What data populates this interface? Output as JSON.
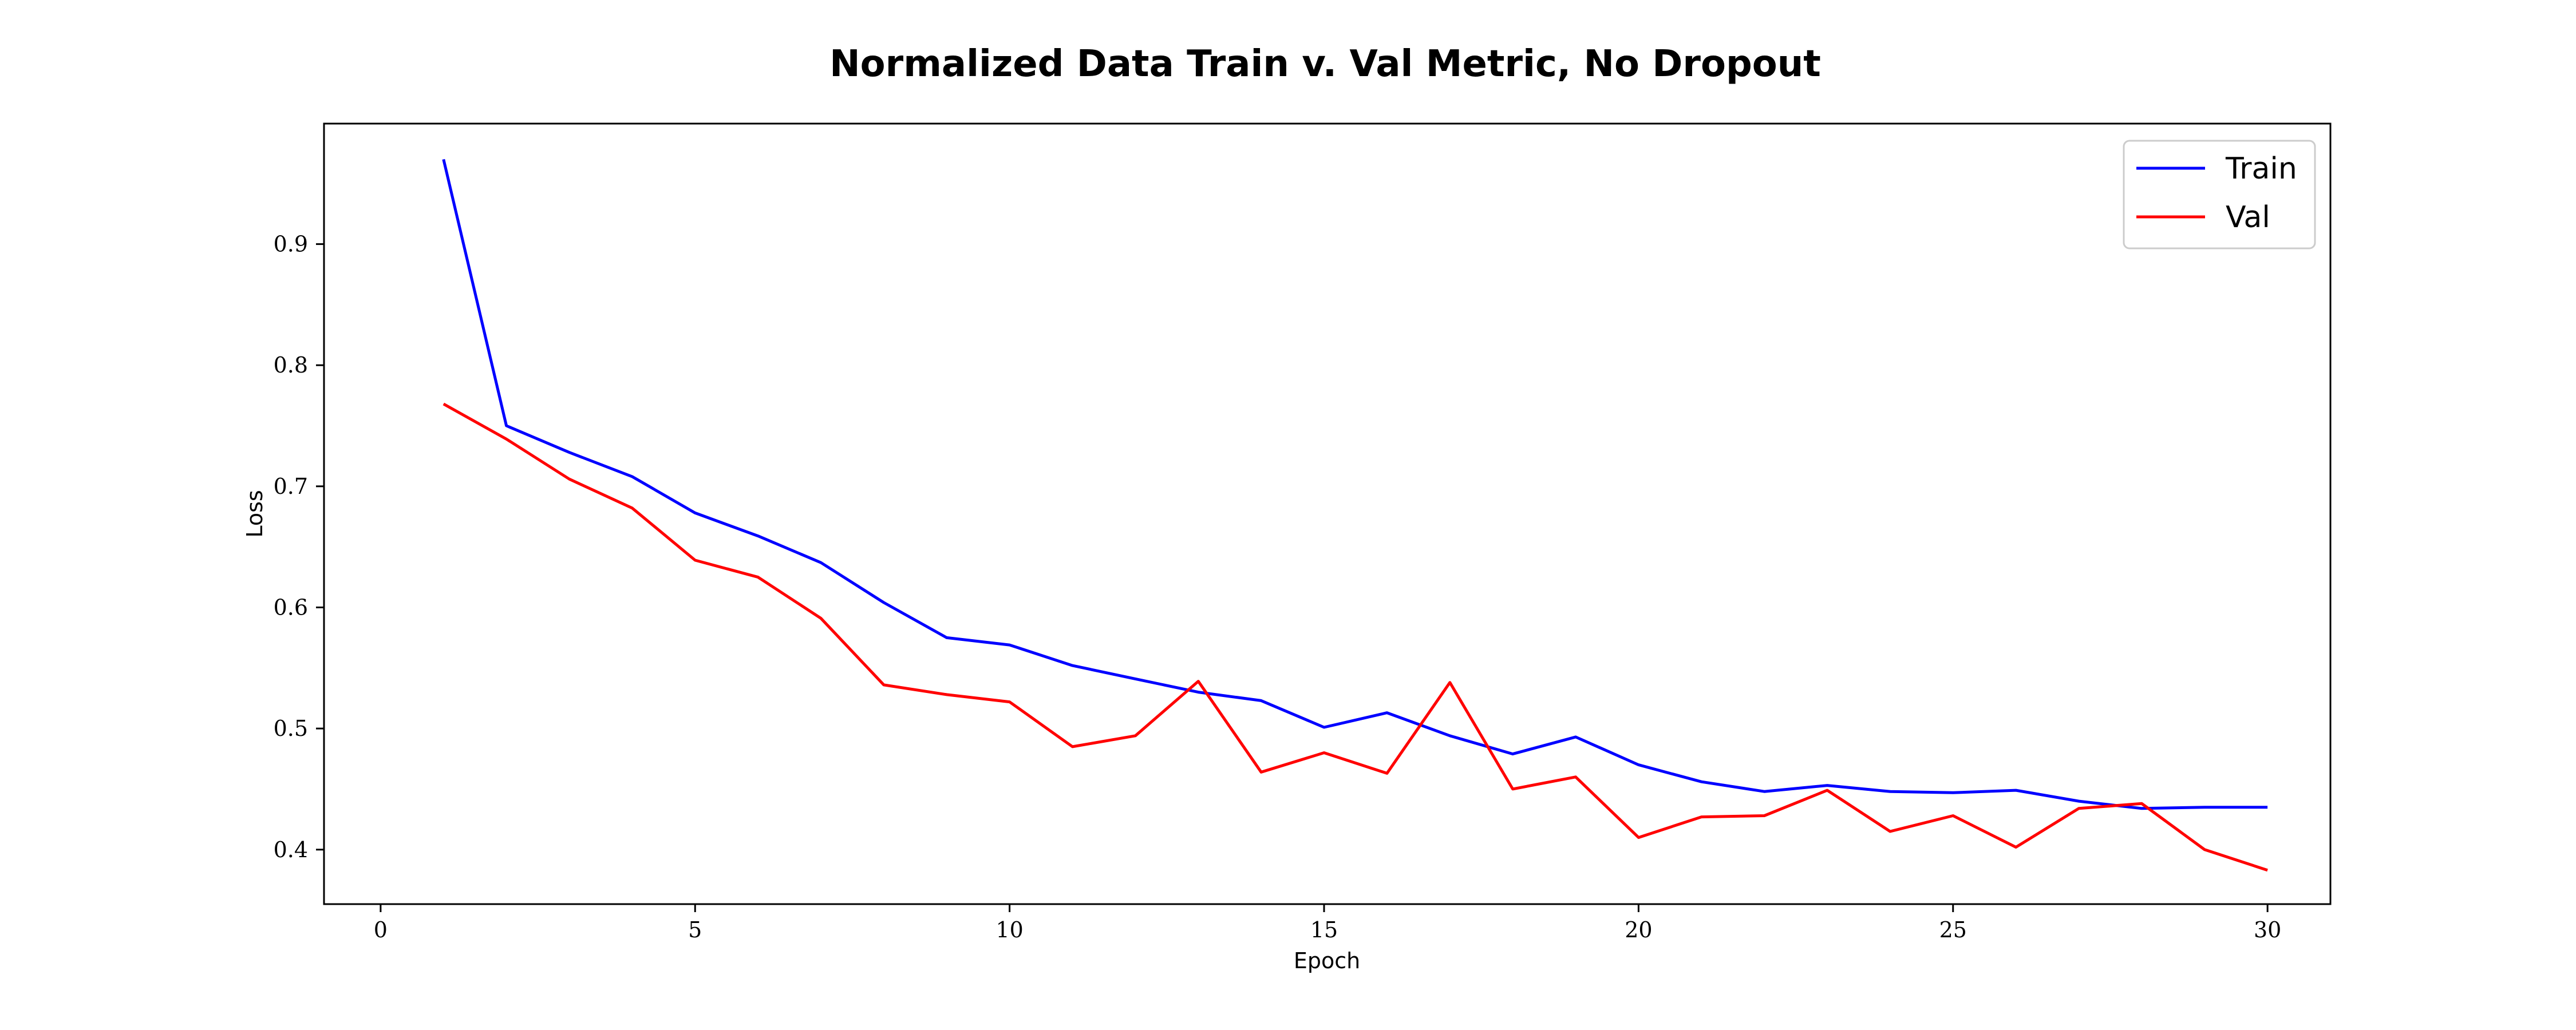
{
  "chart_data": {
    "type": "line",
    "title": "Normalized Data Train v. Val Metric, No Dropout",
    "xlabel": "Epoch",
    "ylabel": "Loss",
    "xlim": [
      -0.9,
      31.0
    ],
    "ylim": [
      0.355,
      0.9995
    ],
    "xticks": [
      0,
      5,
      10,
      15,
      20,
      25,
      30
    ],
    "yticks": [
      0.4,
      0.5,
      0.6,
      0.7,
      0.8,
      0.9
    ],
    "grid": false,
    "legend_position": "top-right",
    "x": [
      1,
      2,
      3,
      4,
      5,
      6,
      7,
      8,
      9,
      10,
      11,
      12,
      13,
      14,
      15,
      16,
      17,
      18,
      19,
      20,
      21,
      22,
      23,
      24,
      25,
      26,
      27,
      28,
      29,
      30
    ],
    "series": [
      {
        "name": "Train",
        "color": "#0000ff",
        "values": [
          0.97,
          0.75,
          0.728,
          0.708,
          0.678,
          0.659,
          0.637,
          0.604,
          0.575,
          0.569,
          0.552,
          0.541,
          0.53,
          0.523,
          0.501,
          0.513,
          0.494,
          0.479,
          0.493,
          0.47,
          0.456,
          0.448,
          0.453,
          0.448,
          0.447,
          0.449,
          0.44,
          0.434,
          0.435,
          0.435
        ]
      },
      {
        "name": "Val",
        "color": "#ff0000",
        "values": [
          0.768,
          0.739,
          0.706,
          0.682,
          0.639,
          0.625,
          0.591,
          0.536,
          0.528,
          0.522,
          0.485,
          0.494,
          0.539,
          0.464,
          0.48,
          0.463,
          0.538,
          0.45,
          0.46,
          0.41,
          0.427,
          0.428,
          0.449,
          0.415,
          0.428,
          0.402,
          0.434,
          0.438,
          0.4,
          0.383
        ]
      }
    ]
  }
}
